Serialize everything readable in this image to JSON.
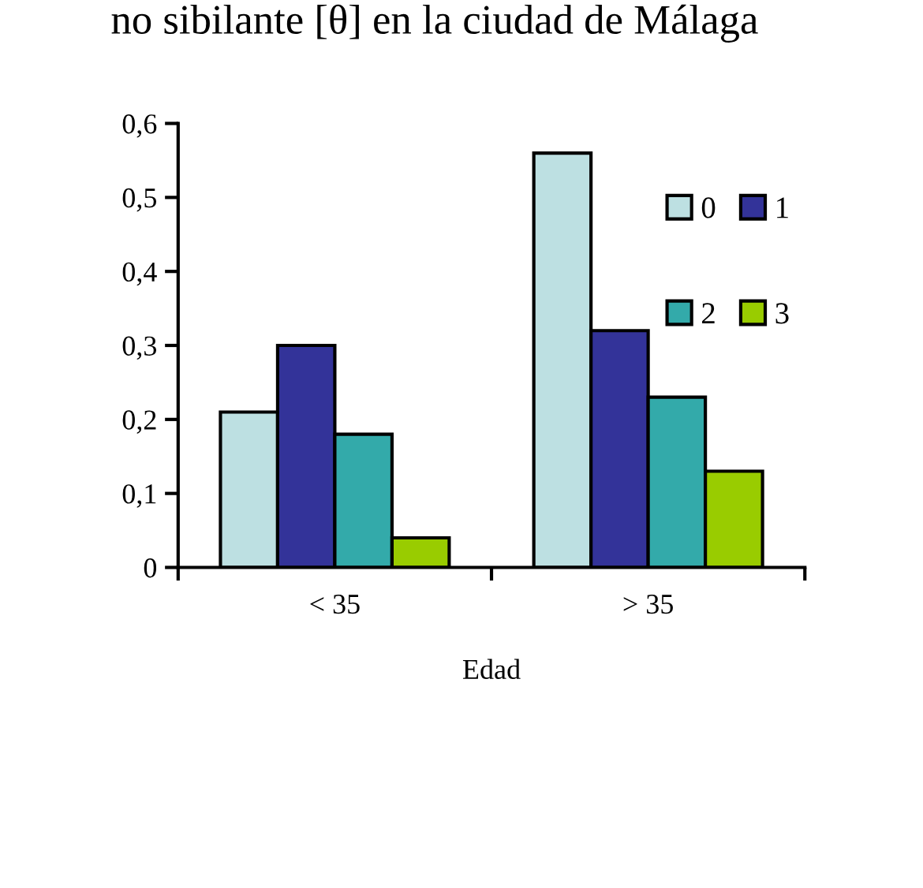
{
  "chart_data": {
    "type": "bar",
    "title": "no sibilante [θ] en la ciudad de Málaga",
    "xlabel": "Edad",
    "categories": [
      "< 35",
      "> 35"
    ],
    "series": [
      {
        "name": "0",
        "color": "#bde0e2",
        "values": [
          0.21,
          0.56
        ]
      },
      {
        "name": "1",
        "color": "#333399",
        "values": [
          0.3,
          0.32
        ]
      },
      {
        "name": "2",
        "color": "#33aaaa",
        "values": [
          0.18,
          0.23
        ]
      },
      {
        "name": "3",
        "color": "#99cc00",
        "values": [
          0.04,
          0.13
        ]
      }
    ],
    "ylim": [
      0,
      0.6
    ],
    "yticks": [
      {
        "value": 0,
        "label": "0"
      },
      {
        "value": 0.1,
        "label": "0,1"
      },
      {
        "value": 0.2,
        "label": "0,2"
      },
      {
        "value": 0.3,
        "label": "0,3"
      },
      {
        "value": 0.4,
        "label": "0,4"
      },
      {
        "value": 0.5,
        "label": "0,5"
      },
      {
        "value": 0.6,
        "label": "0,6"
      }
    ],
    "grid": false,
    "legend": "top right"
  }
}
